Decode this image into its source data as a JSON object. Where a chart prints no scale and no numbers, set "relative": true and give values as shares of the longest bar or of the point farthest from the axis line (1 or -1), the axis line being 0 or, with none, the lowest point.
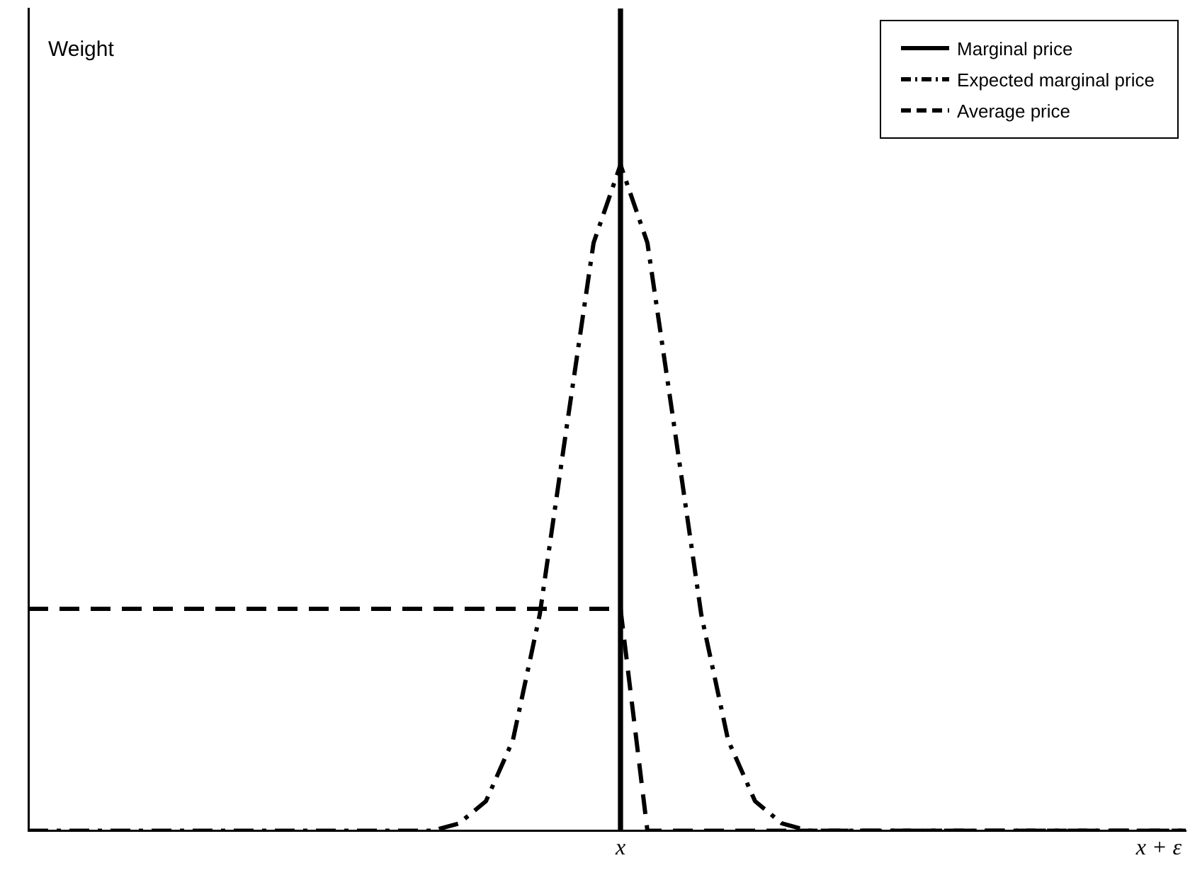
{
  "chart_data": {
    "type": "line",
    "annotations": [
      "Weight"
    ],
    "relative": true,
    "categories": [
      null,
      null,
      null,
      null,
      null,
      null,
      null,
      null,
      null,
      null,
      null,
      null,
      null,
      null,
      null,
      null,
      null,
      null,
      null,
      null,
      null,
      null,
      "x",
      null,
      null,
      null,
      null,
      null,
      null,
      null,
      null,
      null,
      null,
      null,
      null,
      null,
      null,
      null,
      null,
      null,
      null,
      null,
      "x + ε",
      null
    ],
    "series": [
      {
        "name": "Marginal price",
        "type": "bar",
        "color": "#000000",
        "values": [
          null,
          null,
          null,
          null,
          null,
          null,
          null,
          null,
          null,
          null,
          null,
          null,
          null,
          null,
          null,
          null,
          null,
          null,
          null,
          null,
          null,
          null,
          1,
          null,
          null,
          null,
          null,
          null,
          null,
          null,
          null,
          null,
          null,
          null,
          null,
          null,
          null,
          null,
          null,
          null,
          null,
          null,
          null,
          null
        ]
      },
      {
        "name": "Expected marginal price",
        "color": "#000000",
        "line_style": "dashdot",
        "values": [
          0,
          0,
          0,
          0,
          0,
          0,
          0,
          0,
          0,
          0,
          0,
          0,
          0,
          0,
          0,
          0,
          0.009,
          0.036,
          0.11,
          0.263,
          0.491,
          0.715,
          0.81,
          0.715,
          0.491,
          0.263,
          0.11,
          0.036,
          0.009,
          0,
          0,
          0,
          0,
          0,
          0,
          0,
          0,
          0,
          0,
          0,
          0,
          0,
          0,
          0
        ]
      },
      {
        "name": "Average price",
        "color": "#000000",
        "line_style": "dashed",
        "values": [
          0.27,
          0.27,
          0.27,
          0.27,
          0.27,
          0.27,
          0.27,
          0.27,
          0.27,
          0.27,
          0.27,
          0.27,
          0.27,
          0.27,
          0.27,
          0.27,
          0.27,
          0.27,
          0.27,
          0.27,
          0.27,
          0.27,
          0.27,
          0,
          0,
          0,
          0,
          0,
          0,
          0,
          0,
          0,
          0,
          0,
          0,
          0,
          0,
          0,
          0,
          0,
          0,
          0,
          0,
          0
        ]
      }
    ],
    "grid": false,
    "legend": "top right",
    "marker": "none"
  }
}
